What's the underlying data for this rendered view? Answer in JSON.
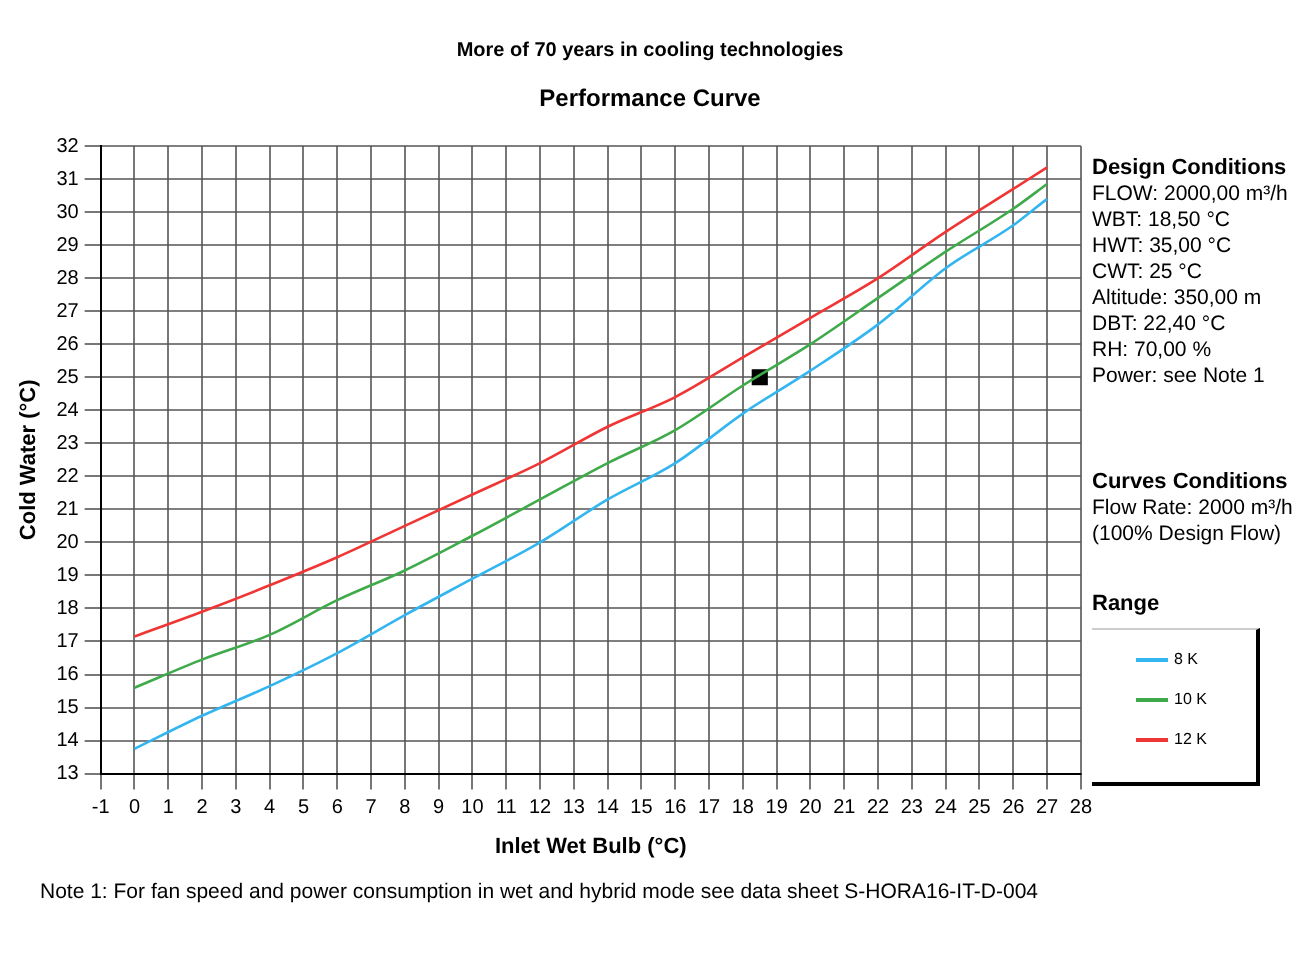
{
  "chart_data": {
    "type": "line",
    "title": "Performance Curve",
    "subtitle": "More of 70 years in cooling technologies",
    "xlabel": "Inlet Wet Bulb (°C)",
    "ylabel": "Cold Water (°C)",
    "legend_title": "Range",
    "x": [
      0,
      2,
      4,
      6,
      8,
      10,
      12,
      14,
      16,
      18,
      20,
      22,
      24,
      26,
      27
    ],
    "series": [
      {
        "name": "8 K",
        "color": "#33b5f0",
        "values": [
          13.75,
          14.75,
          15.65,
          16.65,
          17.8,
          18.9,
          20.0,
          21.3,
          22.4,
          23.9,
          25.2,
          26.6,
          28.3,
          29.6,
          30.4
        ]
      },
      {
        "name": "10 K",
        "color": "#3faa4a",
        "values": [
          15.6,
          16.45,
          17.2,
          18.25,
          19.15,
          20.2,
          21.3,
          22.4,
          23.4,
          24.75,
          26.0,
          27.4,
          28.8,
          30.1,
          30.85
        ]
      },
      {
        "name": "12 K",
        "color": "#f03535",
        "values": [
          17.15,
          17.9,
          18.7,
          19.55,
          20.5,
          21.45,
          22.4,
          23.5,
          24.4,
          25.6,
          26.8,
          28.0,
          29.4,
          30.7,
          31.35
        ]
      },
      {
        "type": "scatter",
        "x": [
          18.5
        ],
        "values": [
          25
        ],
        "color": "#000000",
        "marker": "square"
      }
    ],
    "xlim": [
      -1,
      28
    ],
    "xticks": [
      -1,
      0,
      1,
      2,
      3,
      4,
      5,
      6,
      7,
      8,
      9,
      10,
      11,
      12,
      13,
      14,
      15,
      16,
      17,
      18,
      19,
      20,
      21,
      22,
      23,
      24,
      25,
      26,
      27,
      28
    ],
    "ylim": [
      13,
      32
    ],
    "yticks": [
      13,
      14,
      15,
      16,
      17,
      18,
      19,
      20,
      21,
      22,
      23,
      24,
      25,
      26,
      27,
      28,
      29,
      30,
      31,
      32
    ],
    "grid": true,
    "legend": "right",
    "marker": "none",
    "line_style": "solid",
    "annotations": [
      "Design Conditions",
      "FLOW: 2000,00 m³/h",
      "WBT: 18,50 °C",
      "HWT: 35,00 °C",
      "CWT: 25 °C",
      "Altitude: 350,00 m",
      "DBT: 22,40 °C",
      "RH: 70,00 %",
      "Power: see Note 1",
      "Curves Conditions",
      "Flow Rate: 2000 m³/h",
      "(100% Design Flow)",
      "Note 1: For fan speed and power consumption in wet and hybrid mode see data sheet S-HORA16-IT-D-004"
    ]
  }
}
